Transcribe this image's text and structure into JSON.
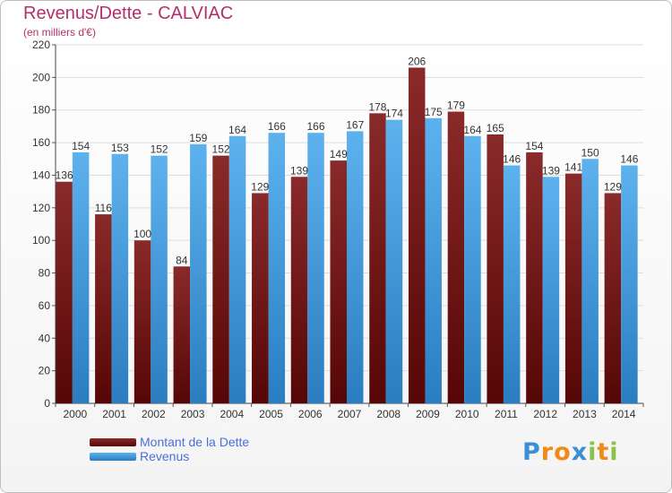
{
  "header": {
    "title": "Revenus/Dette - CALVIAC",
    "subtitle": "(en milliers d'€)"
  },
  "legend": {
    "items": [
      {
        "label": "Montant de la Dette",
        "color": "#7a1515"
      },
      {
        "label": "Revenus",
        "color": "#3a9ce0"
      }
    ]
  },
  "logo": {
    "text": "Proxiti",
    "letters": [
      {
        "ch": "P",
        "color": "#3a8fd6"
      },
      {
        "ch": "r",
        "color": "#f08a1c"
      },
      {
        "ch": "o",
        "color": "#f08a1c"
      },
      {
        "ch": "x",
        "color": "#3a8fd6"
      },
      {
        "ch": "i",
        "color": "#8bc34a"
      },
      {
        "ch": "t",
        "color": "#f08a1c"
      },
      {
        "ch": "i",
        "color": "#8bc34a"
      }
    ]
  },
  "chart_data": {
    "type": "bar",
    "title": "Revenus/Dette - CALVIAC",
    "subtitle": "(en milliers d'€)",
    "categories": [
      "2000",
      "2001",
      "2002",
      "2003",
      "2004",
      "2005",
      "2006",
      "2007",
      "2008",
      "2009",
      "2010",
      "2011",
      "2012",
      "2013",
      "2014"
    ],
    "series": [
      {
        "name": "Montant de la Dette",
        "color": "#7a1515",
        "values": [
          136,
          116,
          100,
          84,
          152,
          129,
          139,
          149,
          178,
          206,
          179,
          165,
          154,
          141,
          129
        ]
      },
      {
        "name": "Revenus",
        "color": "#3a9ce0",
        "values": [
          154,
          153,
          152,
          159,
          164,
          166,
          166,
          167,
          174,
          175,
          164,
          146,
          139,
          150,
          146
        ]
      }
    ],
    "ylim": [
      0,
      220
    ],
    "yticks": [
      0,
      20,
      40,
      60,
      80,
      100,
      120,
      140,
      160,
      180,
      200,
      220
    ],
    "grid": true,
    "legend_position": "bottom-left"
  }
}
